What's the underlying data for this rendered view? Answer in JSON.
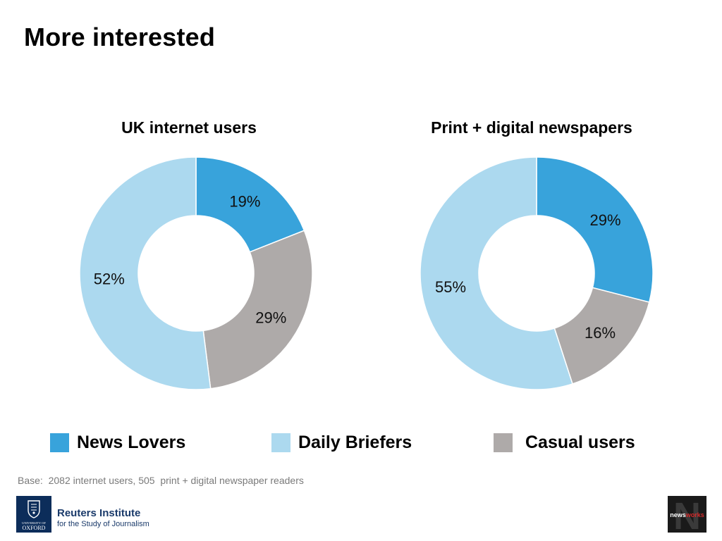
{
  "page": {
    "title": "More interested",
    "base_note": "Base:  2082 internet users, 505  print + digital newspaper readers"
  },
  "chart_data": [
    {
      "type": "pie",
      "title": "UK internet users",
      "categories": [
        "News Lovers",
        "Casual users",
        "Daily Briefers"
      ],
      "values": [
        19,
        29,
        52
      ],
      "labels": [
        "19%",
        "29%",
        "52%"
      ],
      "colors": [
        "#38a3db",
        "#aeaaa9",
        "#acd9ef"
      ],
      "start": "12 o'clock",
      "direction": "clockwise",
      "donut": true
    },
    {
      "type": "pie",
      "title": "Print + digital newspapers",
      "categories": [
        "News Lovers",
        "Casual users",
        "Daily Briefers"
      ],
      "values": [
        29,
        16,
        55
      ],
      "labels": [
        "29%",
        "16%",
        "55%"
      ],
      "colors": [
        "#38a3db",
        "#aeaaa9",
        "#acd9ef"
      ],
      "start": "12 o'clock",
      "direction": "clockwise",
      "donut": true
    }
  ],
  "legend": {
    "placement": "bottom",
    "items": [
      {
        "label": "News Lovers",
        "color": "#38a3db"
      },
      {
        "label": "Daily Briefers",
        "color": "#acd9ef"
      },
      {
        "label": "Casual users",
        "color": "#aeaaa9"
      }
    ]
  },
  "logos": {
    "oxford": {
      "line1": "UNIVERSITY OF",
      "line2": "OXFORD"
    },
    "reuters": {
      "line1": "Reuters Institute",
      "line2": "for the Study of Journalism"
    },
    "newsworks": {
      "letter": "N",
      "wordmark_prefix": "news",
      "wordmark_suffix": "works"
    }
  }
}
